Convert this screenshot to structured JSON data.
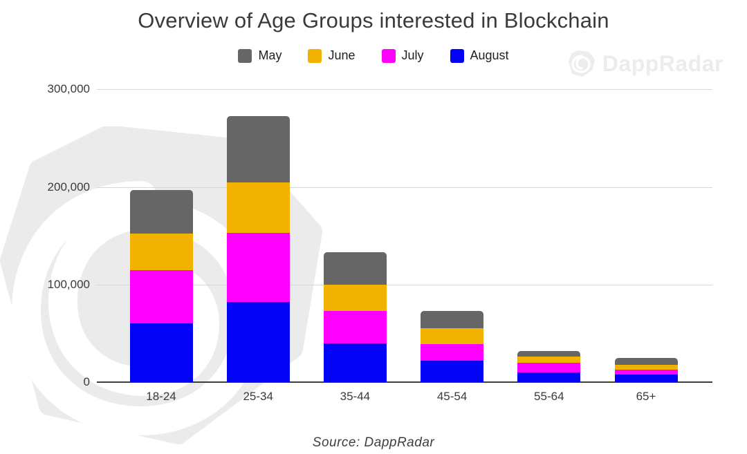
{
  "title": "Overview of Age Groups interested in Blockchain",
  "source_note": "Source: DappRadar",
  "brand_watermark": {
    "name": "DappRadar",
    "color": "#ececec"
  },
  "colors": {
    "may": "#666666",
    "june": "#F2B202",
    "july": "#FF00FF",
    "august": "#0202F5",
    "gridline": "#d6d6d6",
    "axis": "#3c3c3c",
    "watermark_gray": "#ebebeb",
    "title_text": "#3a3a3a"
  },
  "chart_data": {
    "type": "bar",
    "stacked": true,
    "title": "Overview of Age Groups interested in Blockchain",
    "categories": [
      "18-24",
      "25-34",
      "35-44",
      "45-54",
      "55-64",
      "65+"
    ],
    "series": [
      {
        "name": "May",
        "color": "#666666",
        "values": [
          45000,
          68000,
          33000,
          18000,
          6000,
          7000
        ]
      },
      {
        "name": "June",
        "color": "#F2B202",
        "values": [
          37000,
          52000,
          27000,
          16000,
          6000,
          5000
        ]
      },
      {
        "name": "July",
        "color": "#FF00FF",
        "values": [
          55000,
          71000,
          33000,
          17000,
          10000,
          5000
        ]
      },
      {
        "name": "August",
        "color": "#0202F5",
        "values": [
          60000,
          82000,
          40000,
          22000,
          10000,
          8000
        ]
      }
    ],
    "stack_order_bottom_to_top": [
      "August",
      "July",
      "June",
      "May"
    ],
    "totals": [
      197000,
      273000,
      133000,
      73000,
      32000,
      25000
    ],
    "xlabel": "",
    "ylabel": "",
    "ylim": [
      0,
      300000
    ],
    "yticks": [
      0,
      100000,
      200000,
      300000
    ],
    "ytick_labels": [
      "0",
      "100,000",
      "200,000",
      "300,000"
    ],
    "grid": true,
    "legend_position": "top",
    "source": "Source: DappRadar"
  }
}
